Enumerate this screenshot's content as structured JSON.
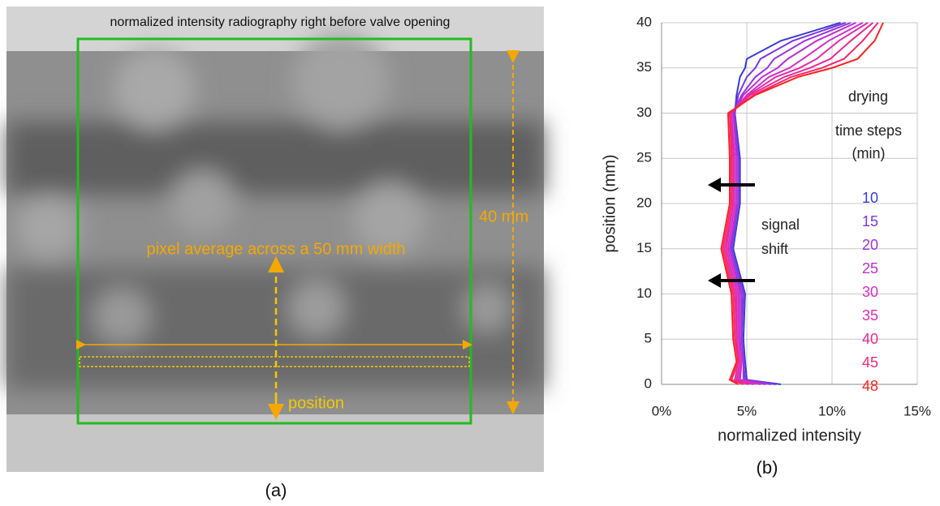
{
  "image_panel": {
    "title": "normalized intensity radiography right before valve opening",
    "dimension_label": "40 mm",
    "annotation": "pixel average across a 50 mm width",
    "position_label": "position",
    "panel_label": "(a)"
  },
  "chart_data": {
    "type": "line",
    "orientation": "vertical",
    "panel_label": "(b)",
    "xlabel": "normalized intensity",
    "ylabel": "position (mm)",
    "xlim": [
      0,
      15
    ],
    "xticks": [
      {
        "value": 0,
        "label": "0%"
      },
      {
        "value": 5,
        "label": "5%"
      },
      {
        "value": 10,
        "label": "10%"
      },
      {
        "value": 15,
        "label": "15%"
      }
    ],
    "ylim": [
      0,
      40
    ],
    "yticks": [
      0,
      5,
      10,
      15,
      20,
      25,
      30,
      35,
      40
    ],
    "grid": true,
    "legend_title": [
      "time steps",
      "(min)"
    ],
    "annotations": [
      "drying",
      "signal",
      "shift"
    ],
    "y": [
      0,
      0.5,
      2.5,
      5,
      10,
      15,
      20,
      25,
      30,
      32,
      34,
      35,
      36,
      38,
      40
    ],
    "series": [
      {
        "name": "10",
        "color": "#3a3ad8",
        "values": [
          7.0,
          5.0,
          4.9,
          4.8,
          4.9,
          4.2,
          4.6,
          4.6,
          4.3,
          4.4,
          4.6,
          4.9,
          5.0,
          7.0,
          10.5
        ]
      },
      {
        "name": "15",
        "color": "#7a36e0",
        "values": [
          6.7,
          4.9,
          4.8,
          4.7,
          4.8,
          4.1,
          4.5,
          4.5,
          4.3,
          4.5,
          5.0,
          5.5,
          5.8,
          7.7,
          10.8
        ]
      },
      {
        "name": "20",
        "color": "#9c34dc",
        "values": [
          6.4,
          4.8,
          4.8,
          4.7,
          4.7,
          4.0,
          4.5,
          4.5,
          4.2,
          4.7,
          5.5,
          6.2,
          6.6,
          8.4,
          11.1
        ]
      },
      {
        "name": "25",
        "color": "#b830d4",
        "values": [
          6.1,
          4.6,
          4.7,
          4.6,
          4.6,
          4.0,
          4.4,
          4.4,
          4.2,
          4.8,
          5.9,
          6.8,
          7.4,
          9.1,
          11.4
        ]
      },
      {
        "name": "30",
        "color": "#d42ec8",
        "values": [
          5.8,
          4.5,
          4.7,
          4.5,
          4.5,
          3.9,
          4.3,
          4.3,
          4.1,
          5.0,
          6.3,
          7.5,
          8.3,
          9.8,
          11.8
        ]
      },
      {
        "name": "35",
        "color": "#e02cae",
        "values": [
          5.4,
          4.4,
          4.6,
          4.4,
          4.4,
          3.8,
          4.2,
          4.2,
          4.1,
          5.1,
          6.7,
          8.1,
          9.1,
          10.4,
          12.1
        ]
      },
      {
        "name": "40",
        "color": "#ea2a92",
        "values": [
          5.1,
          4.3,
          4.5,
          4.4,
          4.3,
          3.7,
          4.2,
          4.2,
          4.0,
          5.2,
          7.2,
          8.7,
          9.9,
          11.1,
          12.4
        ]
      },
      {
        "name": "45",
        "color": "#f22870",
        "values": [
          4.8,
          4.1,
          4.5,
          4.3,
          4.2,
          3.6,
          4.1,
          4.1,
          4.0,
          5.4,
          7.6,
          9.4,
          10.7,
          11.8,
          12.7
        ]
      },
      {
        "name": "48",
        "color": "#ff2020",
        "values": [
          4.5,
          4.0,
          4.4,
          4.2,
          4.1,
          3.5,
          4.0,
          4.0,
          3.9,
          5.5,
          8.0,
          10.0,
          11.5,
          12.5,
          13.0
        ]
      }
    ]
  }
}
